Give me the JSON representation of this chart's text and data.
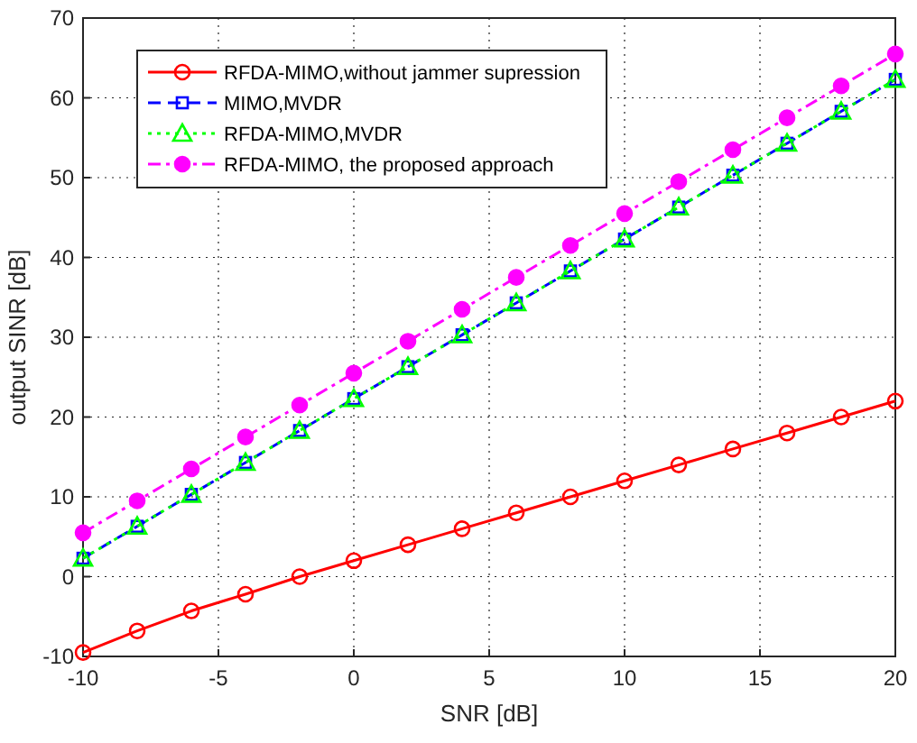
{
  "chart_data": {
    "type": "line",
    "xlabel": "SNR [dB]",
    "ylabel": "output SINR [dB]",
    "x": [
      -10,
      -8,
      -6,
      -4,
      -2,
      0,
      2,
      4,
      6,
      8,
      10,
      12,
      14,
      16,
      18,
      20
    ],
    "series": [
      {
        "name": "RFDA-MIMO,without jammer supression",
        "color": "#ff0000",
        "marker": "circle",
        "line_style": "solid",
        "values": [
          -9.5,
          -6.8,
          -4.3,
          -2.2,
          0,
          2,
          4,
          6,
          8,
          10,
          12,
          14,
          16,
          18,
          20,
          22
        ]
      },
      {
        "name": "MIMO,MVDR",
        "color": "#0000ff",
        "marker": "square",
        "line_style": "dashed",
        "values": [
          2.3,
          6.3,
          10.3,
          14.3,
          18.3,
          22.3,
          26.3,
          30.3,
          34.3,
          38.3,
          42.3,
          46.3,
          50.3,
          54.3,
          58.3,
          62.3
        ]
      },
      {
        "name": "RFDA-MIMO,MVDR",
        "color": "#00ff00",
        "marker": "triangle",
        "line_style": "dotted",
        "values": [
          2.3,
          6.3,
          10.3,
          14.3,
          18.3,
          22.3,
          26.3,
          30.3,
          34.3,
          38.3,
          42.3,
          46.3,
          50.3,
          54.3,
          58.3,
          62.3
        ]
      },
      {
        "name": "RFDA-MIMO, the proposed approach",
        "color": "#ff00ff",
        "marker": "circle",
        "line_style": "dashdot",
        "values": [
          5.5,
          9.5,
          13.5,
          17.5,
          21.5,
          25.5,
          29.5,
          33.5,
          37.5,
          41.5,
          45.5,
          49.5,
          53.5,
          57.5,
          61.5,
          65.5
        ]
      }
    ],
    "xlim": [
      -10,
      20
    ],
    "xticks": [
      -10,
      -5,
      0,
      5,
      10,
      15,
      20
    ],
    "ylim": [
      -10,
      70
    ],
    "yticks": [
      -10,
      0,
      10,
      20,
      30,
      40,
      50,
      60,
      70
    ],
    "grid": true,
    "legend": "top left"
  }
}
